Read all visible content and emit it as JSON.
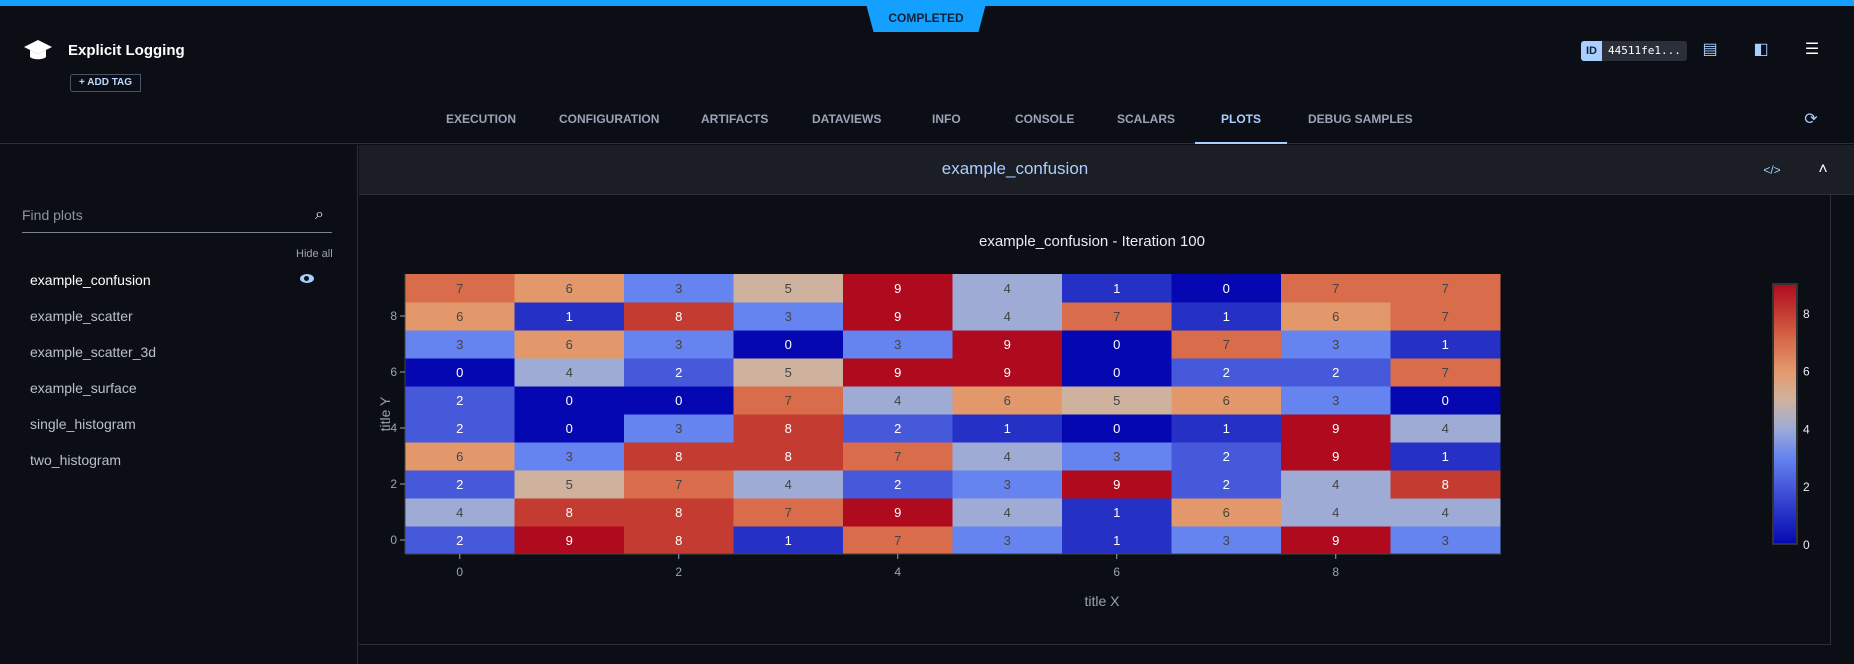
{
  "status": "COMPLETED",
  "header": {
    "title": "Explicit Logging",
    "add_tag": "+ ADD TAG",
    "id_label": "ID",
    "id_value": "44511fe1..."
  },
  "tabs": [
    "EXECUTION",
    "CONFIGURATION",
    "ARTIFACTS",
    "DATAVIEWS",
    "INFO",
    "CONSOLE",
    "SCALARS",
    "PLOTS",
    "DEBUG SAMPLES"
  ],
  "active_tab": "PLOTS",
  "sidebar": {
    "search_placeholder": "Find plots",
    "hide_all": "Hide all",
    "items": [
      "example_confusion",
      "example_scatter",
      "example_scatter_3d",
      "example_surface",
      "single_histogram",
      "two_histogram"
    ]
  },
  "panel": {
    "title": "example_confusion"
  },
  "chart_data": {
    "type": "heatmap",
    "title": "example_confusion - Iteration 100",
    "xlabel": "title X",
    "ylabel": "title Y",
    "x": [
      0,
      1,
      2,
      3,
      4,
      5,
      6,
      7,
      8,
      9
    ],
    "y": [
      0,
      1,
      2,
      3,
      4,
      5,
      6,
      7,
      8,
      9
    ],
    "x_ticks": [
      0,
      2,
      4,
      6,
      8
    ],
    "y_ticks": [
      0,
      2,
      4,
      6,
      8
    ],
    "colorbar_ticks": [
      0,
      2,
      4,
      6,
      8
    ],
    "zlim": [
      0,
      9
    ],
    "colorscale": [
      "#0508b0",
      "#2530c5",
      "#4659db",
      "#6584f0",
      "#9eabd5",
      "#cfb29e",
      "#e3986b",
      "#d86c4b",
      "#c43b32",
      "#b00a1f"
    ],
    "z": [
      [
        2,
        9,
        8,
        1,
        7,
        3,
        1,
        3,
        9,
        3
      ],
      [
        4,
        8,
        8,
        7,
        9,
        4,
        1,
        6,
        4,
        4
      ],
      [
        2,
        5,
        7,
        4,
        2,
        3,
        9,
        2,
        4,
        8
      ],
      [
        6,
        3,
        8,
        8,
        7,
        4,
        3,
        2,
        9,
        1
      ],
      [
        2,
        0,
        3,
        8,
        2,
        1,
        0,
        1,
        9,
        4
      ],
      [
        2,
        0,
        0,
        7,
        4,
        6,
        5,
        6,
        3,
        0
      ],
      [
        0,
        4,
        2,
        5,
        9,
        9,
        0,
        2,
        2,
        7
      ],
      [
        3,
        6,
        3,
        0,
        3,
        9,
        0,
        7,
        3,
        1
      ],
      [
        6,
        1,
        8,
        3,
        9,
        4,
        7,
        1,
        6,
        7
      ],
      [
        7,
        6,
        3,
        5,
        9,
        4,
        1,
        0,
        7,
        7
      ]
    ]
  }
}
